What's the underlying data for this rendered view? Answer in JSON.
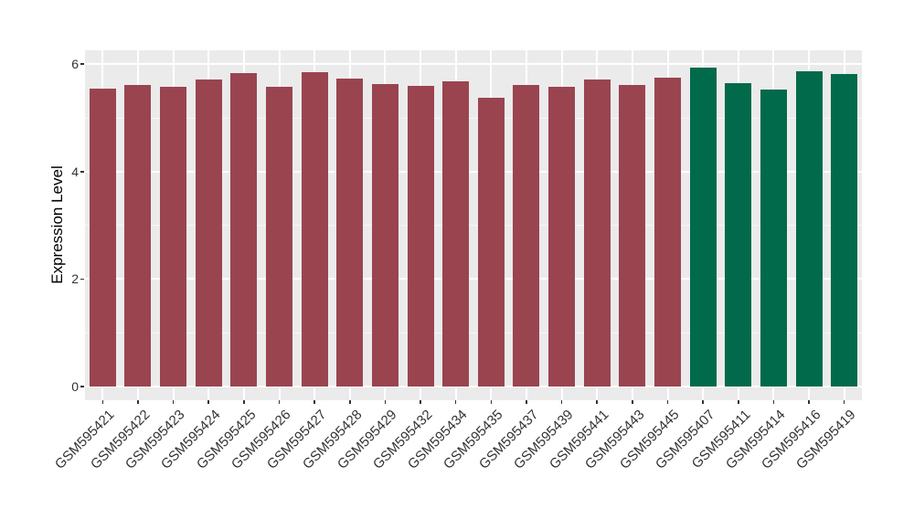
{
  "figure": {
    "background": "#FFFFFF",
    "panel_background": "#EBEBEB",
    "gridline_color": "#FFFFFF",
    "tick_text_color": "#333333",
    "axis_title_color": "#000000"
  },
  "chart_data": {
    "type": "bar",
    "title": "",
    "xlabel": "",
    "ylabel": "Expression Level",
    "ylim": [
      0,
      6.26
    ],
    "yticks": [
      0,
      2,
      4,
      6
    ],
    "yticks_minor": [
      1,
      3,
      5
    ],
    "grid": "white major and minor horizontal lines plus vertical lines at each category center on gray panel",
    "legend_position": "none",
    "x_tick_rotation_deg": 45,
    "categories": [
      "GSM595421",
      "GSM595422",
      "GSM595423",
      "GSM595424",
      "GSM595425",
      "GSM595426",
      "GSM595427",
      "GSM595428",
      "GSM595429",
      "GSM595432",
      "GSM595434",
      "GSM595435",
      "GSM595437",
      "GSM595439",
      "GSM595441",
      "GSM595443",
      "GSM595445",
      "GSM595407",
      "GSM595411",
      "GSM595414",
      "GSM595416",
      "GSM595419"
    ],
    "values": [
      5.54,
      5.61,
      5.58,
      5.71,
      5.83,
      5.58,
      5.85,
      5.74,
      5.63,
      5.6,
      5.68,
      5.37,
      5.61,
      5.58,
      5.71,
      5.62,
      5.75,
      5.93,
      5.64,
      5.53,
      5.86,
      5.82
    ],
    "groups": [
      "group1",
      "group1",
      "group1",
      "group1",
      "group1",
      "group1",
      "group1",
      "group1",
      "group1",
      "group1",
      "group1",
      "group1",
      "group1",
      "group1",
      "group1",
      "group1",
      "group1",
      "group2",
      "group2",
      "group2",
      "group2",
      "group2"
    ],
    "group_colors": {
      "group1": "#9A4450",
      "group2": "#016A4A"
    }
  }
}
